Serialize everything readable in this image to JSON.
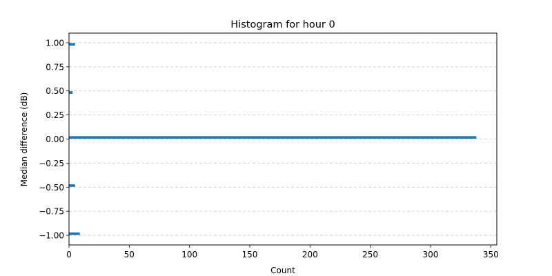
{
  "chart_data": {
    "type": "bar",
    "orientation": "horizontal",
    "title": "Histogram for hour 0",
    "xlabel": "Count",
    "ylabel": "Median difference (dB)",
    "xlim": [
      0,
      355
    ],
    "ylim": [
      -1.1,
      1.1
    ],
    "xticks": [
      0,
      50,
      100,
      150,
      200,
      250,
      300,
      350
    ],
    "yticks": [
      -1.0,
      -0.75,
      -0.5,
      -0.25,
      0.0,
      0.25,
      0.5,
      0.75,
      1.0
    ],
    "ytick_labels": [
      "−1.00",
      "−0.75",
      "−0.50",
      "−0.25",
      "0.00",
      "0.25",
      "0.50",
      "0.75",
      "1.00"
    ],
    "grid": "y-dashed",
    "bar_color": "#1f77b4",
    "bins": [
      {
        "center": 0.9833,
        "height": 0.0267,
        "count": 5
      },
      {
        "center": 0.4833,
        "height": 0.0267,
        "count": 3
      },
      {
        "center": 0.0167,
        "height": 0.0267,
        "count": 338
      },
      {
        "center": -0.4833,
        "height": 0.0267,
        "count": 5
      },
      {
        "center": -0.9833,
        "height": 0.0267,
        "count": 9
      }
    ]
  }
}
